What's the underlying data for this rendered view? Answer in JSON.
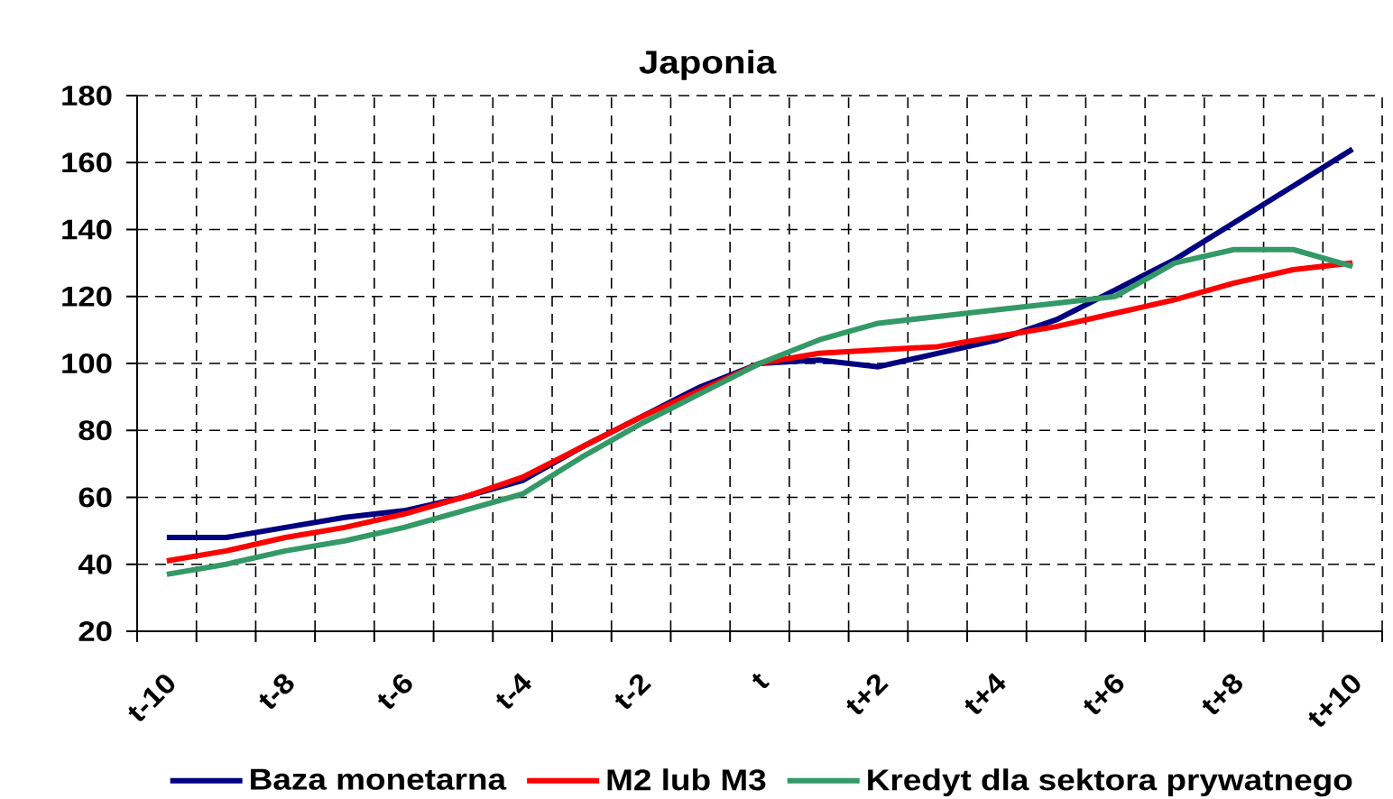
{
  "chart_data": {
    "type": "line",
    "title": "Japonia",
    "categories": [
      "t-10",
      null,
      "t-8",
      null,
      "t-6",
      null,
      "t-4",
      null,
      "t-2",
      null,
      "t",
      null,
      "t+2",
      null,
      "t+4",
      null,
      "t+6",
      null,
      "t+8",
      null,
      "t+10"
    ],
    "series": [
      {
        "name": "Baza monetarna",
        "color": "#000080",
        "values": [
          48,
          48,
          51,
          54,
          56,
          60,
          65,
          75,
          84,
          93,
          100,
          101,
          99,
          103,
          107,
          113,
          122,
          131,
          142,
          153,
          164
        ]
      },
      {
        "name": "M2 lub M3",
        "color": "#ff0000",
        "values": [
          41,
          44,
          48,
          51,
          55,
          60,
          66,
          75,
          84,
          92,
          100,
          103,
          104,
          105,
          108,
          111,
          115,
          119,
          124,
          128,
          130
        ]
      },
      {
        "name": "Kredyt dla sektora prywatnego",
        "color": "#339966",
        "values": [
          37,
          40,
          44,
          47,
          51,
          56,
          61,
          72,
          82,
          91,
          100,
          107,
          112,
          114,
          116,
          118,
          120,
          130,
          134,
          134,
          129
        ]
      }
    ],
    "ylim": [
      20,
      180
    ],
    "yticks": [
      20,
      40,
      60,
      80,
      100,
      120,
      140,
      160,
      180
    ],
    "grid": true,
    "legend": "bottom",
    "marker": "none"
  }
}
